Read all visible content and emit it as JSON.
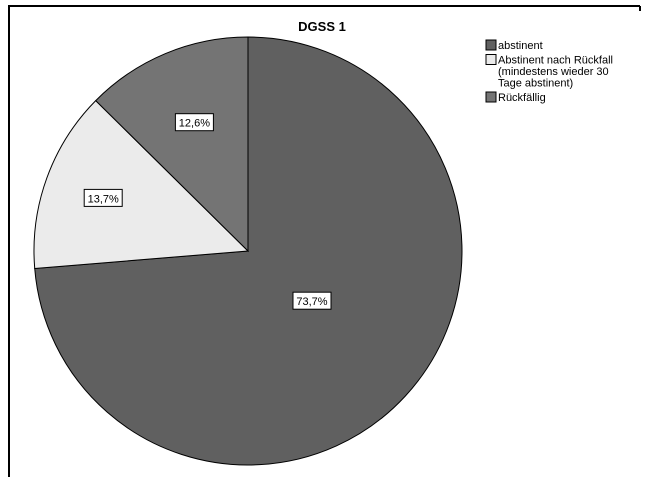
{
  "chart_data": {
    "type": "pie",
    "title": "DGSS 1",
    "slices": [
      {
        "label": "abstinent",
        "value": 73.7,
        "display": "73,7%",
        "color": "#606060"
      },
      {
        "label": "Abstinent nach Rückfall (mindestens wieder 30 Tage abstinent)",
        "value": 13.7,
        "display": "13,7%",
        "color": "#ebebeb"
      },
      {
        "label": "Rückfällig",
        "value": 12.6,
        "display": "12,6%",
        "color": "#747474"
      }
    ],
    "legend": {
      "placement": "top-right",
      "entries": [
        {
          "lines": [
            "abstinent"
          ],
          "color": "#606060"
        },
        {
          "lines": [
            "Abstinent nach Rückfall",
            "(mindestens wieder 30",
            "Tage abstinent)"
          ],
          "color": "#ebebeb"
        },
        {
          "lines": [
            "Rückfällig"
          ],
          "color": "#747474"
        }
      ]
    },
    "start_angle": "12 o'clock",
    "direction": "clockwise",
    "border_color": "#000000"
  }
}
